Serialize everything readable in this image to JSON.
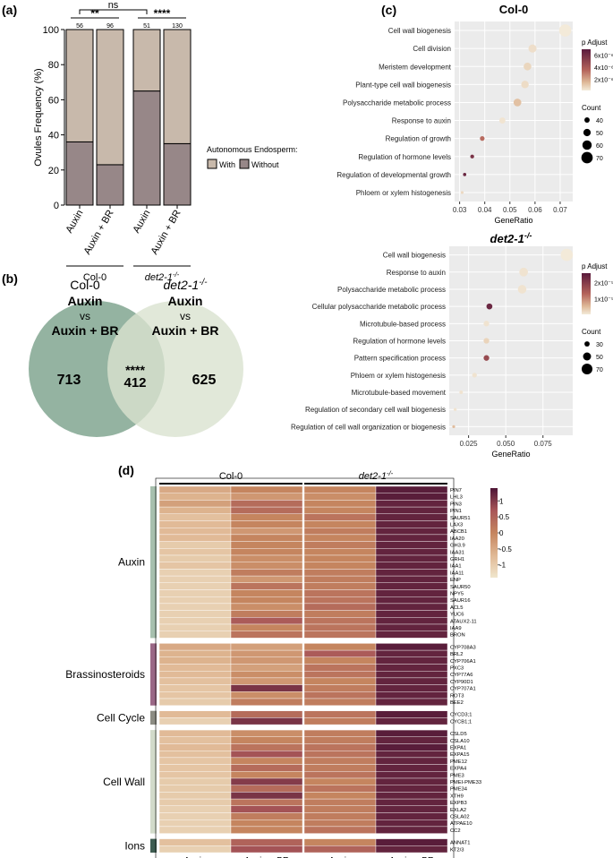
{
  "panel_labels": {
    "a": "(a)",
    "b": "(b)",
    "c": "(c)",
    "d": "(d)"
  },
  "chart_data": [
    {
      "id": "a",
      "type": "bar",
      "ylabel": "Ovules Frequency (%)",
      "ylim": [
        0,
        100
      ],
      "yticks": [
        "0",
        "20",
        "40",
        "60",
        "80",
        "100"
      ],
      "categories": [
        "Auxin",
        "Auxin + BR",
        "Auxin",
        "Auxin + BR"
      ],
      "groups": [
        {
          "label": "Col-0",
          "italic": false,
          "sup": "",
          "members": [
            0,
            1
          ]
        },
        {
          "label": "det2-1",
          "italic": true,
          "sup": "-/-",
          "members": [
            2,
            3
          ]
        }
      ],
      "series": [
        {
          "name": "Without",
          "color": "#978788",
          "values": [
            36,
            23,
            65,
            35
          ]
        },
        {
          "name": "With",
          "color": "#c8b9ab",
          "values": [
            64,
            77,
            35,
            65
          ]
        }
      ],
      "n_labels": [
        "56",
        "96",
        "51",
        "130"
      ],
      "significance": [
        {
          "label": "**",
          "from": 0,
          "to": 1
        },
        {
          "label": "****",
          "from": 2,
          "to": 3
        },
        {
          "label": "ns",
          "from": 0,
          "to": 2
        }
      ],
      "legend": {
        "title": "Autonomous Endosperm:",
        "items": [
          "With",
          "Without"
        ]
      }
    },
    {
      "id": "c-top",
      "type": "scatter",
      "title": "Col-0",
      "title_italic": false,
      "xlabel": "GeneRatio",
      "xlim": [
        0.028,
        0.075
      ],
      "xticks": [
        0.03,
        0.04,
        0.05,
        0.06,
        0.07
      ],
      "xtick_labels": [
        "0.03",
        "0.04",
        "0.05",
        "0.06",
        "0.07"
      ],
      "terms": [
        "Cell wall biogenesis",
        "Cell division",
        "Meristem development",
        "Plant-type cell wall biogenesis",
        "Polysaccharide metabolic process",
        "Response to auxin",
        "Regulation of growth",
        "Regulation of hormone levels",
        "Regulation of developmental growth",
        "Phloem or xylem histogenesis"
      ],
      "gene_ratio": [
        0.072,
        0.059,
        0.057,
        0.056,
        0.053,
        0.047,
        0.039,
        0.035,
        0.032,
        0.031
      ],
      "count": [
        74,
        54,
        52,
        51,
        52,
        44,
        37,
        33,
        30,
        28
      ],
      "p_adjust": [
        1e-07,
        5e-07,
        8e-07,
        6e-07,
        1.5e-06,
        3e-07,
        4e-06,
        6e-06,
        6.5e-06,
        7e-07
      ],
      "legend": {
        "color_title": "p Adjust",
        "color_range": [
          1e-07,
          7e-06
        ],
        "color_ticks": [
          {
            "v": 6e-06,
            "label": "6x10⁻⁶"
          },
          {
            "v": 4e-06,
            "label": "4x10⁻⁶"
          },
          {
            "v": 2e-06,
            "label": "2x10⁻⁶"
          }
        ],
        "size_title": "Count",
        "size_range": [
          28,
          74
        ],
        "size_items": [
          40,
          50,
          60,
          70
        ]
      }
    },
    {
      "id": "c-bottom",
      "type": "scatter",
      "title": "det2-1",
      "title_sup": "-/-",
      "title_italic": true,
      "xlabel": "GeneRatio",
      "xlim": [
        0.012,
        0.095
      ],
      "xticks": [
        0.025,
        0.05,
        0.075
      ],
      "xtick_labels": [
        "0.025",
        "0.050",
        "0.075"
      ],
      "terms": [
        "Cell wall biogenesis",
        "Response to auxin",
        "Polysaccharide metabolic process",
        "Cellular polysaccharide metabolic process",
        "Microtubule-based process",
        "Regulation of hormone levels",
        "Pattern specification process",
        "Phloem or xylem histogenesis",
        "Microtubule-based movement",
        "Regulation of secondary cell wall biogenesis",
        "Regulation of cell wall organization or biogenesis"
      ],
      "gene_ratio": [
        0.091,
        0.062,
        0.061,
        0.039,
        0.037,
        0.037,
        0.037,
        0.029,
        0.02,
        0.016,
        0.015
      ],
      "count": [
        80,
        55,
        54,
        35,
        33,
        33,
        33,
        26,
        18,
        14,
        13
      ],
      "p_adjust": [
        1e-07,
        1e-06,
        1e-06,
        2.4e-05,
        1e-06,
        3e-06,
        1.9e-05,
        1e-06,
        1e-06,
        1e-06,
        6e-06
      ],
      "legend": {
        "color_title": "p Adjust",
        "color_range": [
          1e-07,
          2.6e-05
        ],
        "color_ticks": [
          {
            "v": 2e-05,
            "label": "2x10⁻⁵"
          },
          {
            "v": 1e-05,
            "label": "1x10⁻⁵"
          }
        ],
        "size_title": "Count",
        "size_range": [
          13,
          80
        ],
        "size_items": [
          30,
          50,
          70
        ]
      }
    },
    {
      "id": "d",
      "type": "heatmap",
      "column_groups": [
        {
          "label": "Col-0",
          "italic": false,
          "sup": ""
        },
        {
          "label": "det2-1",
          "italic": true,
          "sup": "-/-"
        }
      ],
      "columns": [
        "Auxin",
        "Auxin + BR",
        "Auxin",
        "Auxin + BR"
      ],
      "color_range": [
        -1.4,
        1.4
      ],
      "color_ticks": [
        {
          "v": 1,
          "label": "1"
        },
        {
          "v": 0.5,
          "label": "0.5"
        },
        {
          "v": 0,
          "label": "0"
        },
        {
          "v": -0.5,
          "label": "-0.5"
        },
        {
          "v": -1,
          "label": "-1"
        }
      ],
      "categories": [
        {
          "name": "Auxin",
          "color": "#a7c0ae",
          "genes": [
            {
              "gene": "PIN7",
              "v": [
                -0.4,
                0.0,
                0.0,
                1.3
              ]
            },
            {
              "gene": "LHL3",
              "v": [
                -0.5,
                -0.2,
                -0.1,
                1.3
              ]
            },
            {
              "gene": "PIN3",
              "v": [
                -0.3,
                0.3,
                0.0,
                1.2
              ]
            },
            {
              "gene": "PIN1",
              "v": [
                -0.5,
                0.3,
                0.0,
                1.2
              ]
            },
            {
              "gene": "SAUR51",
              "v": [
                -0.7,
                0.0,
                0.2,
                1.2
              ]
            },
            {
              "gene": "LAX3",
              "v": [
                -0.6,
                0.0,
                0.0,
                1.2
              ]
            },
            {
              "gene": "ABCB1",
              "v": [
                -0.6,
                -0.2,
                0.1,
                1.2
              ]
            },
            {
              "gene": "IAA20",
              "v": [
                -0.6,
                0.0,
                0.0,
                1.2
              ]
            },
            {
              "gene": "GH3.9",
              "v": [
                -0.9,
                0.0,
                0.1,
                1.2
              ]
            },
            {
              "gene": "IAA31",
              "v": [
                -0.8,
                0.0,
                0.0,
                1.2
              ]
            },
            {
              "gene": "GRH1",
              "v": [
                -0.9,
                -0.1,
                0.0,
                1.2
              ]
            },
            {
              "gene": "IAA1",
              "v": [
                -0.8,
                -0.1,
                0.0,
                1.2
              ]
            },
            {
              "gene": "IAA11",
              "v": [
                -1.0,
                0.1,
                0.1,
                1.2
              ]
            },
            {
              "gene": "ENP",
              "v": [
                -1.0,
                -0.2,
                0.1,
                1.2
              ]
            },
            {
              "gene": "SAUR50",
              "v": [
                -1.0,
                0.2,
                0.1,
                1.2
              ]
            },
            {
              "gene": "NPY5",
              "v": [
                -1.0,
                0.0,
                0.2,
                1.2
              ]
            },
            {
              "gene": "SAUR16",
              "v": [
                -1.0,
                0.0,
                0.2,
                1.2
              ]
            },
            {
              "gene": "ACL5",
              "v": [
                -1.0,
                -0.1,
                0.3,
                1.2
              ]
            },
            {
              "gene": "YUC6",
              "v": [
                -1.0,
                0.1,
                0.1,
                1.2
              ]
            },
            {
              "gene": "ATAUX2-11",
              "v": [
                -1.0,
                0.5,
                0.2,
                1.2
              ]
            },
            {
              "gene": "IAA9",
              "v": [
                -1.0,
                0.0,
                0.2,
                1.2
              ]
            },
            {
              "gene": "BRON",
              "v": [
                -1.0,
                0.2,
                0.2,
                1.2
              ]
            }
          ]
        },
        {
          "name": "Brassinosteroids",
          "color": "#9a6786",
          "genes": [
            {
              "gene": "CYP708A3",
              "v": [
                -0.4,
                -0.3,
                0.0,
                1.3
              ]
            },
            {
              "gene": "BRL2",
              "v": [
                -0.5,
                -0.2,
                0.5,
                1.2
              ]
            },
            {
              "gene": "CYP706A1",
              "v": [
                -0.5,
                -0.2,
                0.0,
                1.2
              ]
            },
            {
              "gene": "PXC3",
              "v": [
                -0.6,
                -0.3,
                0.2,
                1.2
              ]
            },
            {
              "gene": "CYP77A6",
              "v": [
                -0.6,
                -0.1,
                0.2,
                1.2
              ]
            },
            {
              "gene": "CYP90D1",
              "v": [
                -0.7,
                -0.2,
                0.0,
                1.2
              ]
            },
            {
              "gene": "CYP707A1",
              "v": [
                -0.8,
                1.0,
                0.1,
                1.2
              ]
            },
            {
              "gene": "ROT3",
              "v": [
                -0.8,
                -0.1,
                0.2,
                1.2
              ]
            },
            {
              "gene": "BEE2",
              "v": [
                -0.9,
                0.1,
                0.1,
                1.2
              ]
            }
          ]
        },
        {
          "name": "Cell Cycle",
          "color": "#8c8c83",
          "genes": [
            {
              "gene": "CYCD3;1",
              "v": [
                -0.6,
                0.3,
                0.2,
                1.3
              ]
            },
            {
              "gene": "CYCB1;1",
              "v": [
                -1.0,
                1.0,
                0.1,
                1.2
              ]
            }
          ]
        },
        {
          "name": "Cell Wall",
          "color": "#d2dbca",
          "genes": [
            {
              "gene": "CSLD5",
              "v": [
                -0.6,
                -0.1,
                0.1,
                1.3
              ]
            },
            {
              "gene": "CSLA10",
              "v": [
                -0.7,
                0.0,
                0.1,
                1.2
              ]
            },
            {
              "gene": "EXPA1",
              "v": [
                -0.6,
                0.2,
                0.2,
                1.3
              ]
            },
            {
              "gene": "EXPA15",
              "v": [
                -0.7,
                0.6,
                0.2,
                1.2
              ]
            },
            {
              "gene": "PME12",
              "v": [
                -0.8,
                0.0,
                0.1,
                1.2
              ]
            },
            {
              "gene": "EXPA4",
              "v": [
                -0.8,
                0.3,
                0.1,
                1.2
              ]
            },
            {
              "gene": "PME3",
              "v": [
                -0.8,
                0.0,
                0.2,
                1.2
              ]
            },
            {
              "gene": "PMEI-PME33",
              "v": [
                -0.9,
                0.9,
                0.0,
                1.2
              ]
            },
            {
              "gene": "PME34",
              "v": [
                -0.9,
                0.3,
                0.2,
                1.2
              ]
            },
            {
              "gene": "XTH9",
              "v": [
                -0.9,
                1.0,
                0.0,
                1.2
              ]
            },
            {
              "gene": "EXPB3",
              "v": [
                -0.9,
                0.2,
                0.1,
                1.2
              ]
            },
            {
              "gene": "EXLA2",
              "v": [
                -1.0,
                0.6,
                0.1,
                1.2
              ]
            },
            {
              "gene": "CSLA02",
              "v": [
                -1.0,
                0.1,
                0.1,
                1.2
              ]
            },
            {
              "gene": "ATPAE10",
              "v": [
                -1.0,
                0.0,
                0.1,
                1.2
              ]
            },
            {
              "gene": "CC2",
              "v": [
                -1.0,
                0.0,
                0.2,
                1.2
              ]
            }
          ]
        },
        {
          "name": "Ions",
          "color": "#3f5d52",
          "genes": [
            {
              "gene": "ANNAT1",
              "v": [
                -0.7,
                0.4,
                0.0,
                1.3
              ]
            },
            {
              "gene": "KT2/3",
              "v": [
                -1.0,
                0.6,
                0.4,
                1.2
              ]
            }
          ]
        }
      ]
    }
  ],
  "venn": {
    "left": {
      "genotype": "Col-0",
      "italic": false,
      "sup": "",
      "treatment": "Auxin",
      "vs": "vs",
      "comparison": "Auxin + BR",
      "unique": "713",
      "color": "#8eaf9c"
    },
    "right": {
      "genotype": "det2-1",
      "italic": true,
      "sup": "-/-",
      "treatment": "Auxin",
      "vs": "vs",
      "comparison": "Auxin + BR",
      "unique": "625",
      "color": "#d9e2cf"
    },
    "overlap": "412",
    "overlap_sig": "****"
  }
}
